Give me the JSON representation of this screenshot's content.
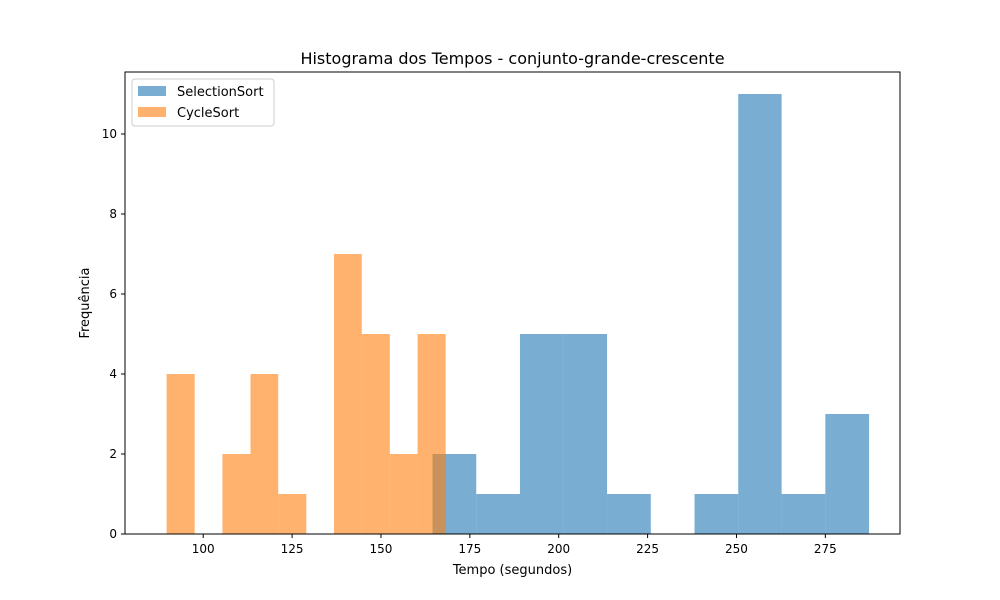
{
  "chart_data": {
    "type": "histogram",
    "title": "Histograma dos Tempos - conjunto-grande-crescente",
    "xlabel": "Tempo (segundos)",
    "ylabel": "Frequência",
    "xlim": [
      78,
      296
    ],
    "ylim": [
      0,
      11.55
    ],
    "xticks": [
      100,
      125,
      150,
      175,
      200,
      225,
      250,
      275
    ],
    "yticks": [
      0,
      2,
      4,
      6,
      8,
      10
    ],
    "legend_position": "upper-left",
    "grid": false,
    "series": [
      {
        "name": "SelectionSort",
        "color": "#1f77b4",
        "opacity": 0.6,
        "bins": [
          {
            "x0": 164.5,
            "x1": 176.8,
            "count": 2
          },
          {
            "x0": 176.8,
            "x1": 189.1,
            "count": 1
          },
          {
            "x0": 189.1,
            "x1": 201.3,
            "count": 5
          },
          {
            "x0": 201.3,
            "x1": 213.6,
            "count": 5
          },
          {
            "x0": 213.6,
            "x1": 225.9,
            "count": 1
          },
          {
            "x0": 225.9,
            "x1": 238.2,
            "count": 0
          },
          {
            "x0": 238.2,
            "x1": 250.5,
            "count": 1
          },
          {
            "x0": 250.5,
            "x1": 262.7,
            "count": 11
          },
          {
            "x0": 262.7,
            "x1": 275.0,
            "count": 1
          },
          {
            "x0": 275.0,
            "x1": 287.3,
            "count": 3
          }
        ]
      },
      {
        "name": "CycleSort",
        "color": "#ff7f0e",
        "opacity": 0.6,
        "bins": [
          {
            "x0": 89.7,
            "x1": 97.6,
            "count": 4
          },
          {
            "x0": 97.6,
            "x1": 105.4,
            "count": 0
          },
          {
            "x0": 105.4,
            "x1": 113.3,
            "count": 2
          },
          {
            "x0": 113.3,
            "x1": 121.1,
            "count": 4
          },
          {
            "x0": 121.1,
            "x1": 129.0,
            "count": 1
          },
          {
            "x0": 129.0,
            "x1": 136.8,
            "count": 0
          },
          {
            "x0": 136.8,
            "x1": 144.6,
            "count": 7
          },
          {
            "x0": 144.6,
            "x1": 152.5,
            "count": 5
          },
          {
            "x0": 152.5,
            "x1": 160.3,
            "count": 2
          },
          {
            "x0": 160.3,
            "x1": 168.2,
            "count": 5
          }
        ]
      }
    ]
  }
}
